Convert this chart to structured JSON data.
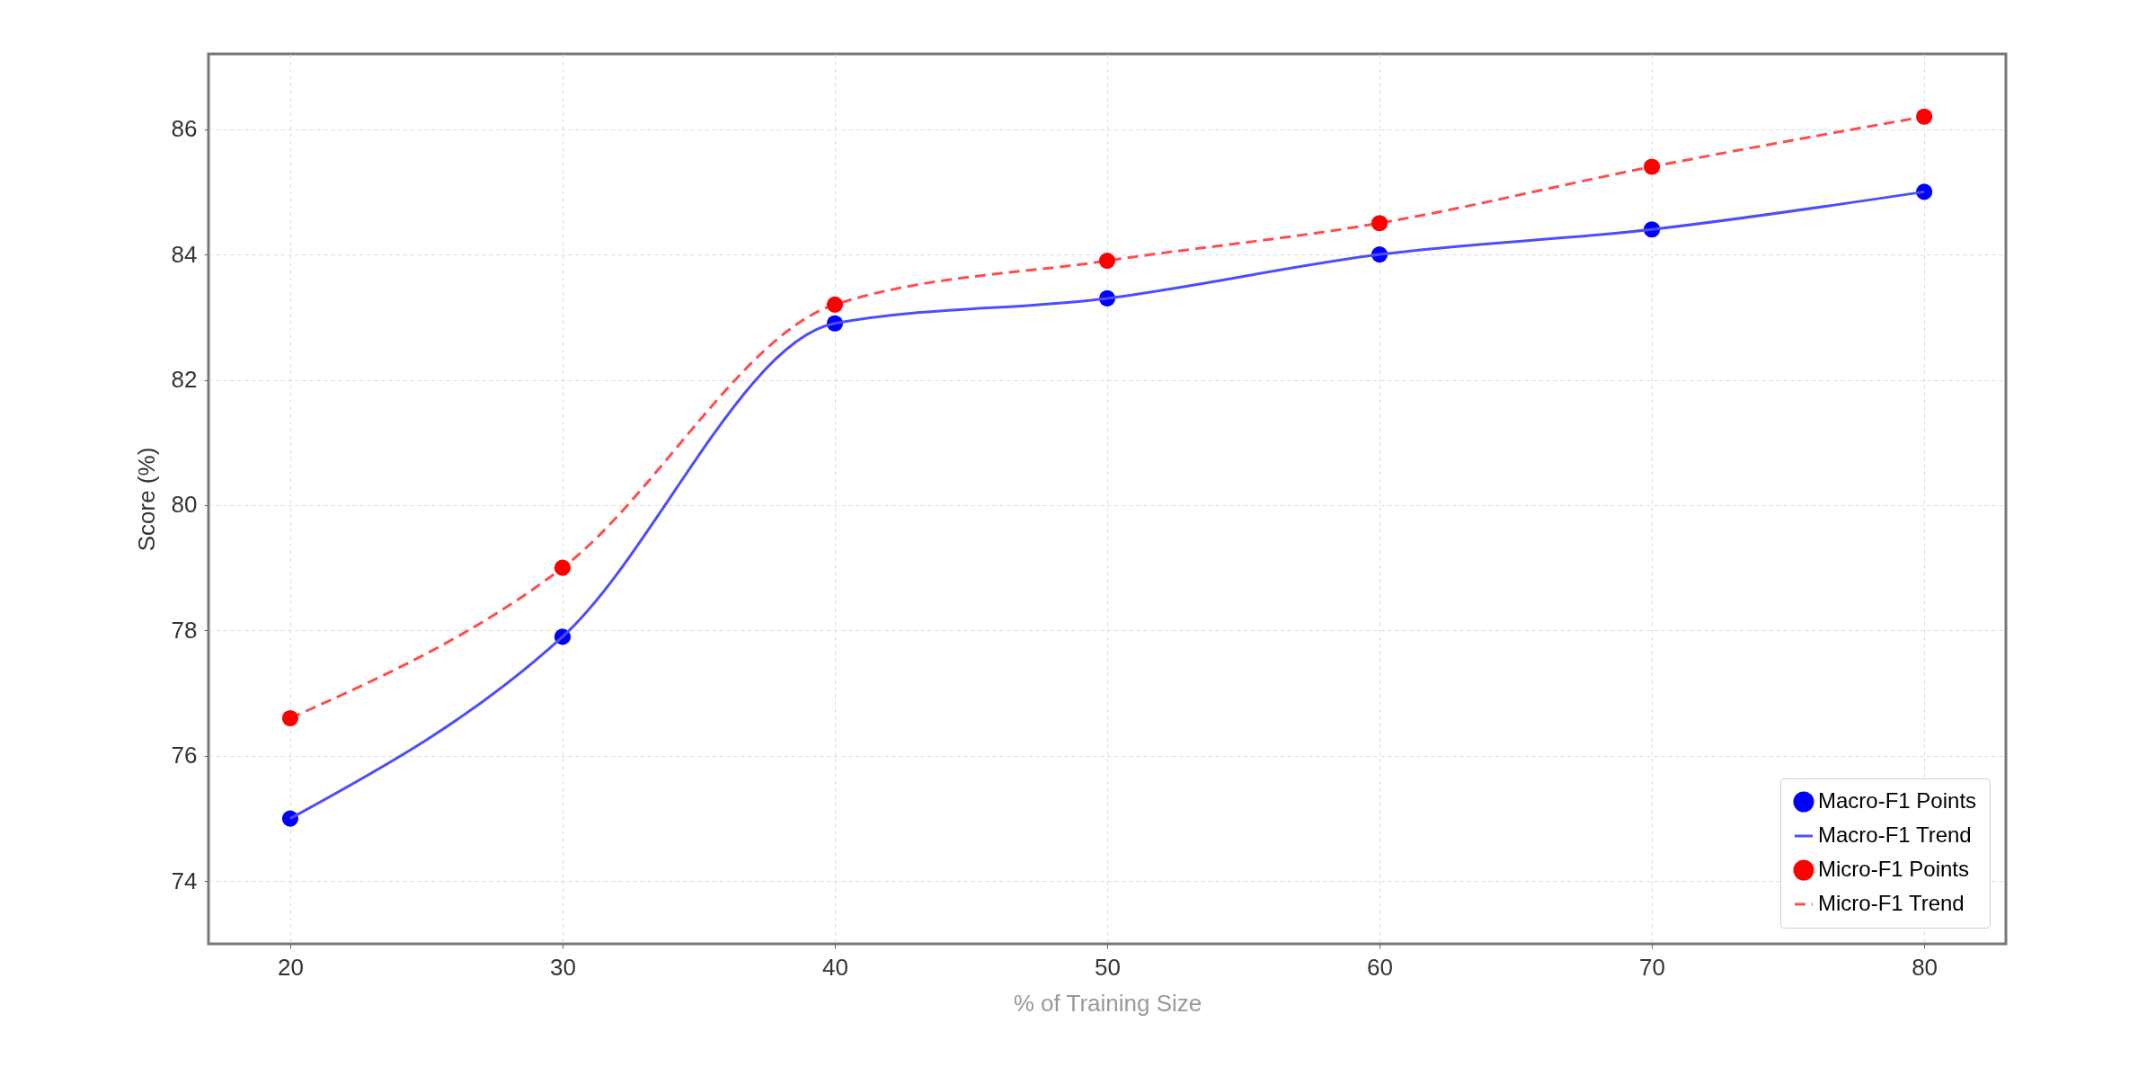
{
  "chart_data": {
    "type": "line",
    "xlabel": "% of Training Size",
    "ylabel": "Score (%)",
    "x": [
      20,
      30,
      40,
      50,
      60,
      70,
      80
    ],
    "xlim": [
      17,
      83
    ],
    "xticks": [
      20,
      30,
      40,
      50,
      60,
      70,
      80
    ],
    "ylim": [
      73,
      87.2
    ],
    "yticks": [
      74,
      76,
      78,
      80,
      82,
      84,
      86
    ],
    "grid": true,
    "legend": "bottom right",
    "series": [
      {
        "name": "Macro-F1 Points",
        "type": "scatter",
        "marker": "circle",
        "color": "#0000ff",
        "values": [
          75.0,
          77.9,
          82.9,
          83.3,
          84.0,
          84.4,
          85.0
        ]
      },
      {
        "name": "Macro-F1 Trend",
        "type": "line",
        "line_style": "solid",
        "color": "#4d4dff",
        "values": [
          75.0,
          77.9,
          82.9,
          83.3,
          84.0,
          84.4,
          85.0
        ]
      },
      {
        "name": "Micro-F1 Points",
        "type": "scatter",
        "marker": "circle",
        "color": "#ff0000",
        "values": [
          76.6,
          79.0,
          83.2,
          83.9,
          84.5,
          85.4,
          86.2
        ]
      },
      {
        "name": "Micro-F1 Trend",
        "type": "line",
        "line_style": "dashed",
        "color": "#ff4d4d",
        "values": [
          76.6,
          79.0,
          83.2,
          83.9,
          84.5,
          85.4,
          86.2
        ]
      }
    ]
  }
}
